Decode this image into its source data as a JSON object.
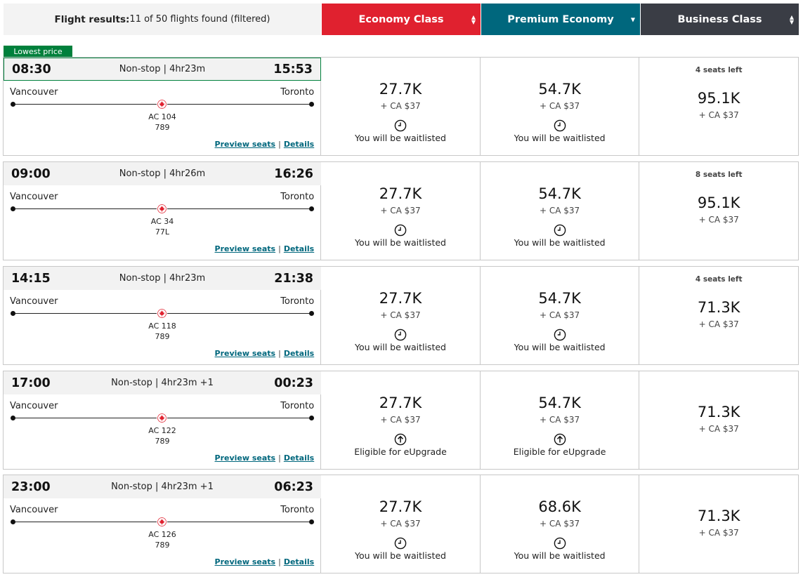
{
  "header": {
    "results_label": "Flight results:",
    "results_count": "11 of 50 flights found (filtered)",
    "economy": "Economy Class",
    "premium": "Premium Economy",
    "business": "Business Class"
  },
  "badge": {
    "lowest_price": "Lowest price"
  },
  "links": {
    "preview": "Preview seats",
    "details": "Details",
    "separator": "|"
  },
  "flights": [
    {
      "depart": "08:30",
      "duration": "Non-stop | 4hr23m",
      "arrive": "15:53",
      "origin": "Vancouver",
      "destination": "Toronto",
      "flight_number": "AC 104",
      "aircraft": "789",
      "economy": {
        "points": "27.7K",
        "tax": "+ CA $37",
        "status": "You will be waitlisted",
        "icon": "clock-icon"
      },
      "premium": {
        "points": "54.7K",
        "tax": "+ CA $37",
        "status": "You will be waitlisted",
        "icon": "clock-icon"
      },
      "business": {
        "seats": "4 seats left",
        "points": "95.1K",
        "tax": "+ CA $37"
      }
    },
    {
      "depart": "09:00",
      "duration": "Non-stop | 4hr26m",
      "arrive": "16:26",
      "origin": "Vancouver",
      "destination": "Toronto",
      "flight_number": "AC 34",
      "aircraft": "77L",
      "economy": {
        "points": "27.7K",
        "tax": "+ CA $37",
        "status": "You will be waitlisted",
        "icon": "clock-icon"
      },
      "premium": {
        "points": "54.7K",
        "tax": "+ CA $37",
        "status": "You will be waitlisted",
        "icon": "clock-icon"
      },
      "business": {
        "seats": "8 seats left",
        "points": "95.1K",
        "tax": "+ CA $37"
      }
    },
    {
      "depart": "14:15",
      "duration": "Non-stop | 4hr23m",
      "arrive": "21:38",
      "origin": "Vancouver",
      "destination": "Toronto",
      "flight_number": "AC 118",
      "aircraft": "789",
      "economy": {
        "points": "27.7K",
        "tax": "+ CA $37",
        "status": "You will be waitlisted",
        "icon": "clock-icon"
      },
      "premium": {
        "points": "54.7K",
        "tax": "+ CA $37",
        "status": "You will be waitlisted",
        "icon": "clock-icon"
      },
      "business": {
        "seats": "4 seats left",
        "points": "71.3K",
        "tax": "+ CA $37"
      }
    },
    {
      "depart": "17:00",
      "duration": "Non-stop | 4hr23m +1",
      "arrive": "00:23",
      "origin": "Vancouver",
      "destination": "Toronto",
      "flight_number": "AC 122",
      "aircraft": "789",
      "economy": {
        "points": "27.7K",
        "tax": "+ CA $37",
        "status": "Eligible for eUpgrade",
        "icon": "upgrade-arrow-icon"
      },
      "premium": {
        "points": "54.7K",
        "tax": "+ CA $37",
        "status": "Eligible for eUpgrade",
        "icon": "upgrade-arrow-icon"
      },
      "business": {
        "seats": "",
        "points": "71.3K",
        "tax": "+ CA $37"
      }
    },
    {
      "depart": "23:00",
      "duration": "Non-stop | 4hr23m +1",
      "arrive": "06:23",
      "origin": "Vancouver",
      "destination": "Toronto",
      "flight_number": "AC 126",
      "aircraft": "789",
      "economy": {
        "points": "27.7K",
        "tax": "+ CA $37",
        "status": "You will be waitlisted",
        "icon": "clock-icon"
      },
      "premium": {
        "points": "68.6K",
        "tax": "+ CA $37",
        "status": "You will be waitlisted",
        "icon": "clock-icon"
      },
      "business": {
        "seats": "",
        "points": "71.3K",
        "tax": "+ CA $37"
      }
    }
  ],
  "colors": {
    "economy": "#e0212f",
    "premium": "#00677d",
    "business": "#3a3d45",
    "lowest_badge": "#00803c",
    "link": "#00677d",
    "maple_leaf": "#e0212f"
  }
}
